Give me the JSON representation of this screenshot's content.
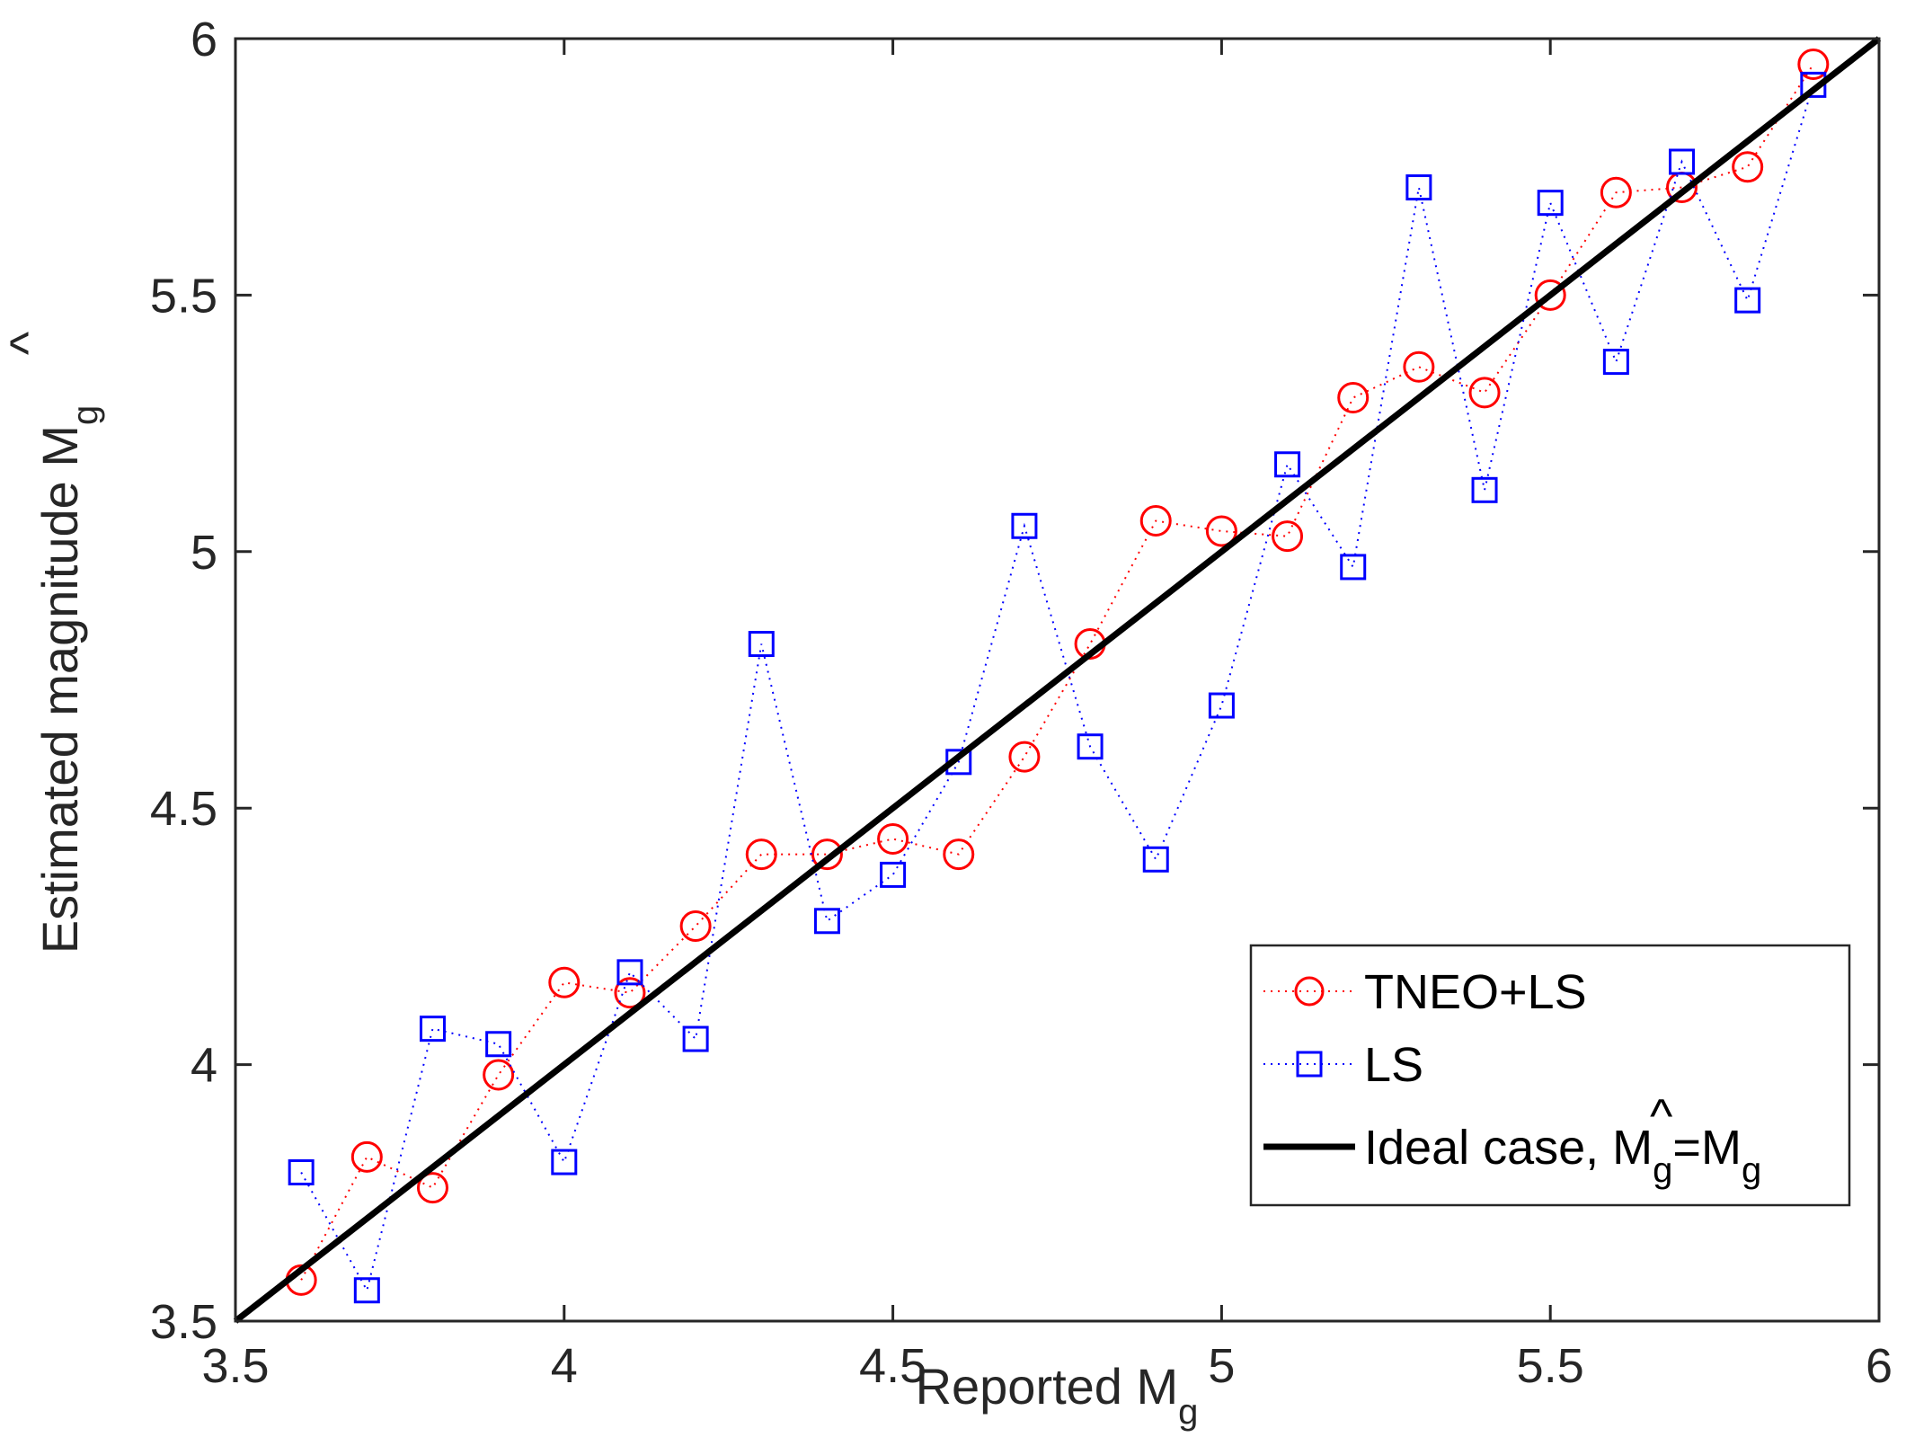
{
  "colors": {
    "tneo": "#ff0000",
    "ls": "#0000ff",
    "ideal": "#000000",
    "axis": "#262626"
  },
  "chart_data": {
    "type": "line",
    "title": "",
    "xlabel": "Reported M",
    "xlabel_sub": "g",
    "ylabel": "Estimated magnitude M",
    "ylabel_hat": "^",
    "ylabel_sub": "g",
    "xlim": [
      3.5,
      6
    ],
    "ylim": [
      3.5,
      6
    ],
    "xticks": [
      3.5,
      4,
      4.5,
      5,
      5.5,
      6
    ],
    "xtick_labels": [
      "3.5",
      "4",
      "4.5",
      "5",
      "5.5",
      "6"
    ],
    "yticks": [
      3.5,
      4,
      4.5,
      5,
      5.5,
      6
    ],
    "ytick_labels": [
      "3.5",
      "4",
      "4.5",
      "5",
      "5.5",
      "6"
    ],
    "grid": false,
    "legend_position": "bottom-right",
    "x": [
      3.6,
      3.7,
      3.8,
      3.9,
      4.0,
      4.1,
      4.2,
      4.3,
      4.4,
      4.5,
      4.6,
      4.7,
      4.8,
      4.9,
      5.0,
      5.1,
      5.2,
      5.3,
      5.4,
      5.5,
      5.6,
      5.7,
      5.8,
      5.9
    ],
    "series": [
      {
        "name": "TNEO+LS",
        "marker": "circle",
        "line": "dotted",
        "color": "#ff0000",
        "values": [
          3.58,
          3.82,
          3.76,
          3.98,
          4.16,
          4.14,
          4.27,
          4.41,
          4.41,
          4.44,
          4.41,
          4.6,
          4.82,
          5.06,
          5.04,
          5.03,
          5.3,
          5.36,
          5.31,
          5.5,
          5.7,
          5.71,
          5.75,
          5.95
        ]
      },
      {
        "name": "LS",
        "marker": "square",
        "line": "dotted",
        "color": "#0000ff",
        "values": [
          3.79,
          3.56,
          4.07,
          4.04,
          3.81,
          4.18,
          4.05,
          4.82,
          4.28,
          4.37,
          4.59,
          5.05,
          4.62,
          4.4,
          4.7,
          5.17,
          4.97,
          5.71,
          5.12,
          5.68,
          5.37,
          5.76,
          5.49,
          5.91
        ]
      }
    ],
    "reference_line": {
      "name_prefix": "Ideal case, ",
      "name_hat": "^",
      "name_m1": "M",
      "name_sub1": "g",
      "name_eq": "=M",
      "name_sub2": "g",
      "from": [
        3.5,
        3.5
      ],
      "to": [
        6,
        6
      ],
      "color": "#000000"
    }
  }
}
